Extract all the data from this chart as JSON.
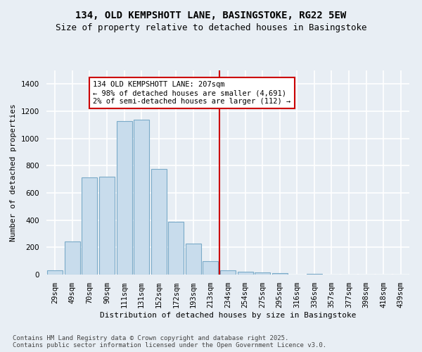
{
  "title": "134, OLD KEMPSHOTT LANE, BASINGSTOKE, RG22 5EW",
  "subtitle": "Size of property relative to detached houses in Basingstoke",
  "xlabel": "Distribution of detached houses by size in Basingstoke",
  "ylabel": "Number of detached properties",
  "bar_color": "#c8dcec",
  "bar_edge_color": "#7aaac8",
  "background_color": "#e8eef4",
  "grid_color": "#ffffff",
  "categories": [
    "29sqm",
    "49sqm",
    "70sqm",
    "90sqm",
    "111sqm",
    "131sqm",
    "152sqm",
    "172sqm",
    "193sqm",
    "213sqm",
    "234sqm",
    "254sqm",
    "275sqm",
    "295sqm",
    "316sqm",
    "336sqm",
    "357sqm",
    "377sqm",
    "398sqm",
    "418sqm",
    "439sqm"
  ],
  "values": [
    30,
    245,
    715,
    720,
    1130,
    1140,
    775,
    390,
    230,
    100,
    30,
    20,
    15,
    10,
    0,
    5,
    0,
    0,
    0,
    0,
    0
  ],
  "vline_x": 9.5,
  "vline_color": "#cc0000",
  "annotation_text": "134 OLD KEMPSHOTT LANE: 207sqm\n← 98% of detached houses are smaller (4,691)\n2% of semi-detached houses are larger (112) →",
  "annotation_box_color": "#ffffff",
  "annotation_box_edge": "#cc0000",
  "ylim": [
    0,
    1500
  ],
  "yticks": [
    0,
    200,
    400,
    600,
    800,
    1000,
    1200,
    1400
  ],
  "footer_line1": "Contains HM Land Registry data © Crown copyright and database right 2025.",
  "footer_line2": "Contains public sector information licensed under the Open Government Licence v3.0.",
  "title_fontsize": 10,
  "subtitle_fontsize": 9,
  "annotation_fontsize": 7.5,
  "footer_fontsize": 6.5,
  "axis_label_fontsize": 8,
  "tick_fontsize": 7.5,
  "ylabel_fontsize": 8
}
